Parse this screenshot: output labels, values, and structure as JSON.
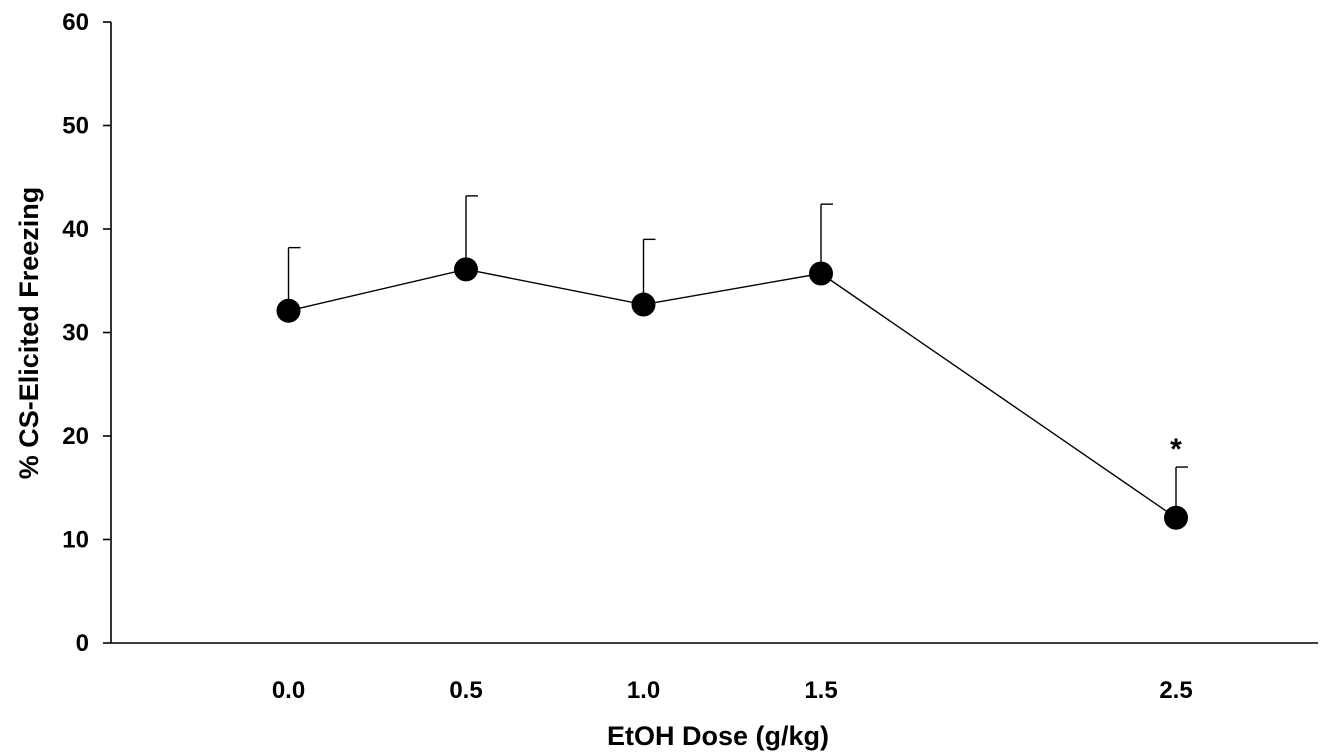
{
  "chart_data": {
    "type": "line",
    "xlabel": "EtOH Dose (g/kg)",
    "ylabel": "% CS-Elicited Freezing",
    "ylim": [
      0,
      60
    ],
    "yticks": [
      0,
      10,
      20,
      30,
      40,
      50,
      60
    ],
    "xlim": [
      -0.5,
      2.9
    ],
    "xticks": [
      0.0,
      0.5,
      1.0,
      1.5,
      2.5
    ],
    "xtick_labels": [
      "0.0",
      "0.5",
      "1.0",
      "1.5",
      "2.5"
    ],
    "grid": false,
    "series": [
      {
        "x": [
          0.0,
          0.5,
          1.0,
          1.5,
          2.5
        ],
        "y": [
          32.1,
          36.1,
          32.7,
          35.7,
          12.1
        ],
        "error_upper": [
          6.1,
          7.1,
          6.3,
          6.7,
          4.9
        ],
        "color": "#000000",
        "marker": "filled-circle"
      }
    ],
    "annotations": [
      {
        "text": "*",
        "x": 2.5,
        "y": 19.5
      }
    ]
  }
}
